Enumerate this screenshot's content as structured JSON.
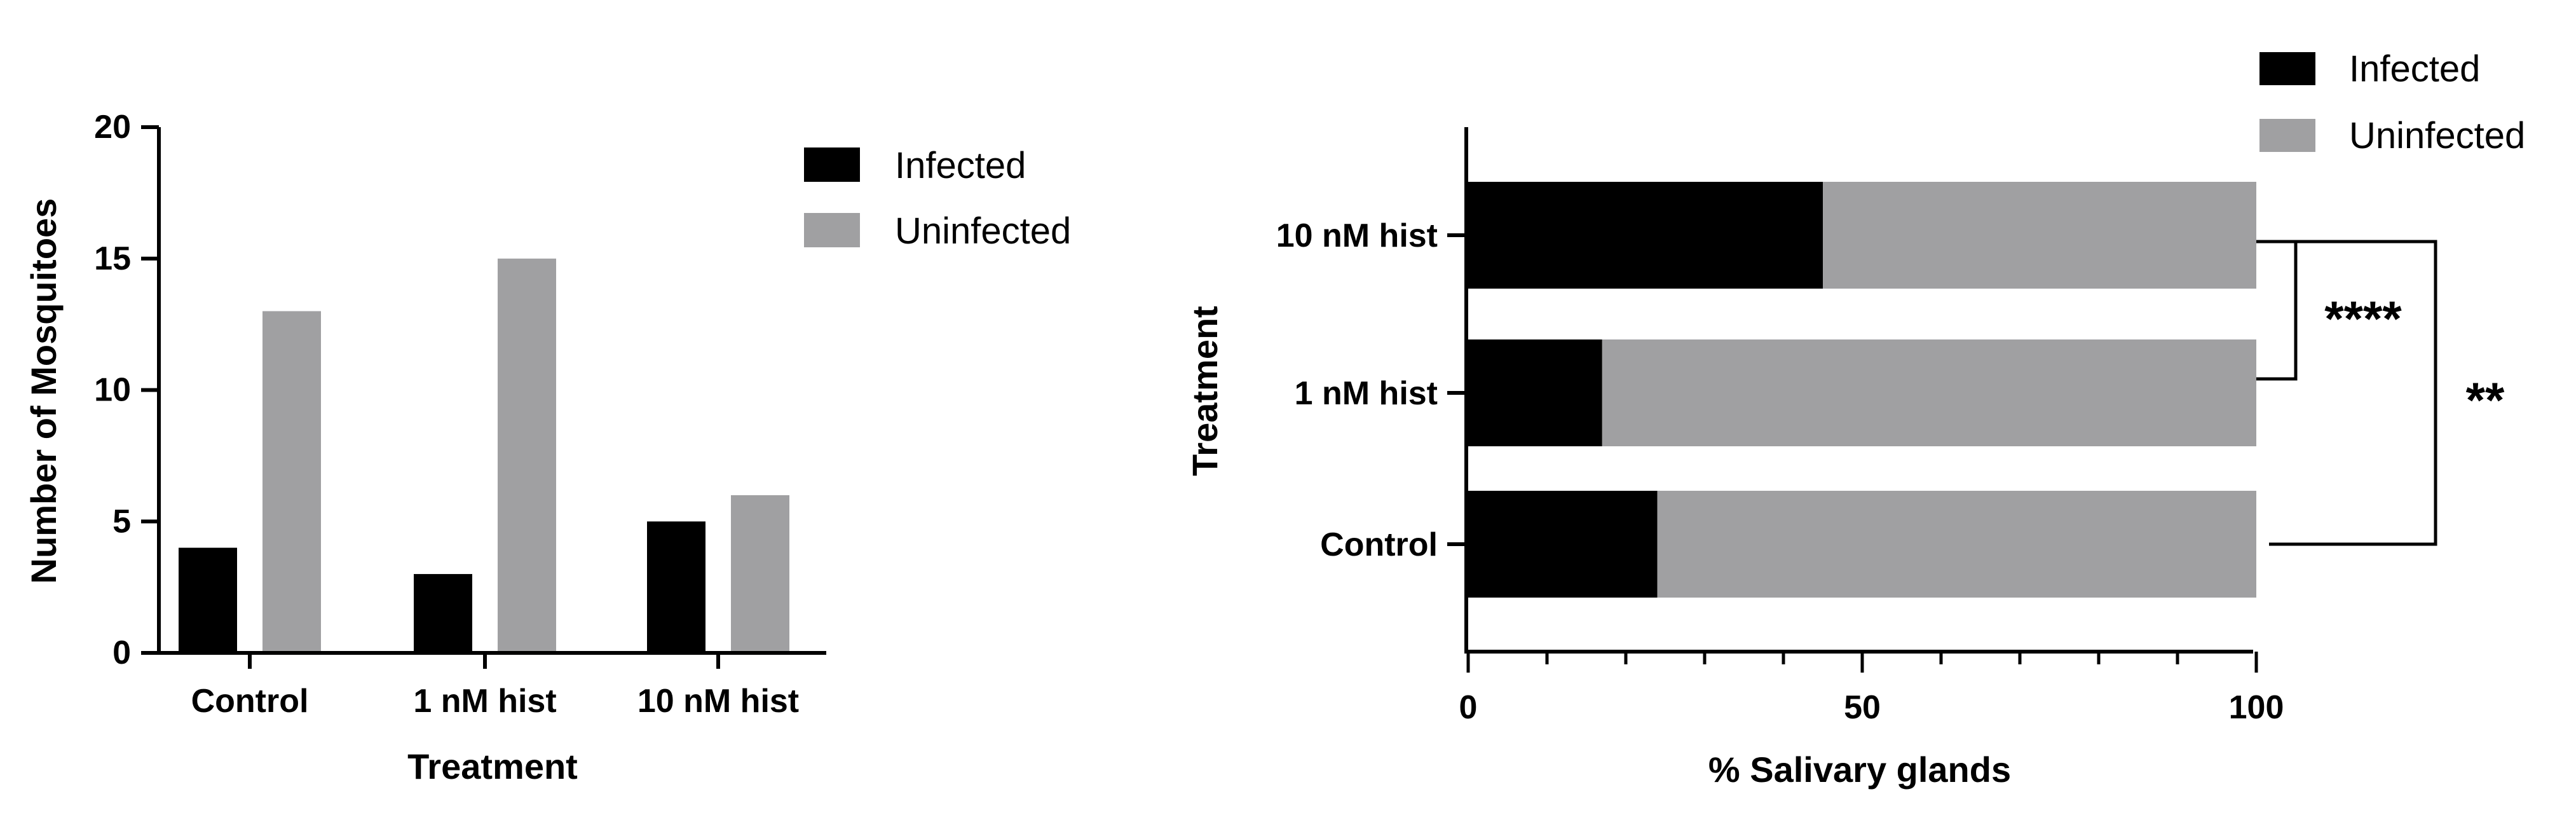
{
  "colors": {
    "infected": "#000000",
    "uninfected": "#a0a0a2"
  },
  "chart_data": [
    {
      "type": "bar",
      "orientation": "vertical",
      "categories": [
        "Control",
        "1 nM hist",
        "10 nM hist"
      ],
      "series": [
        {
          "name": "Infected",
          "values": [
            4,
            3,
            5
          ]
        },
        {
          "name": "Uninfected",
          "values": [
            13,
            15,
            6
          ]
        }
      ],
      "xlabel": "Treatment",
      "ylabel": "Number of Mosquitoes",
      "ylim": [
        0,
        20
      ],
      "yticks": [
        0,
        5,
        10,
        15,
        20
      ],
      "legend": "top-right"
    },
    {
      "type": "bar",
      "orientation": "horizontal",
      "stacked": true,
      "categories": [
        "Control",
        "1 nM hist",
        "10 nM hist"
      ],
      "series": [
        {
          "name": "Infected",
          "values": [
            24,
            17,
            45
          ]
        },
        {
          "name": "Uninfected",
          "values": [
            76,
            83,
            55
          ]
        }
      ],
      "xlabel": "% Salivary glands",
      "ylabel": "Treatment",
      "xlim": [
        0,
        100
      ],
      "xticks": [
        0,
        50,
        100
      ],
      "legend": "top-right",
      "annotations": [
        {
          "between": [
            "10 nM hist",
            "1 nM hist"
          ],
          "label": "****"
        },
        {
          "between": [
            "10 nM hist",
            "Control"
          ],
          "label": "**"
        }
      ]
    }
  ]
}
